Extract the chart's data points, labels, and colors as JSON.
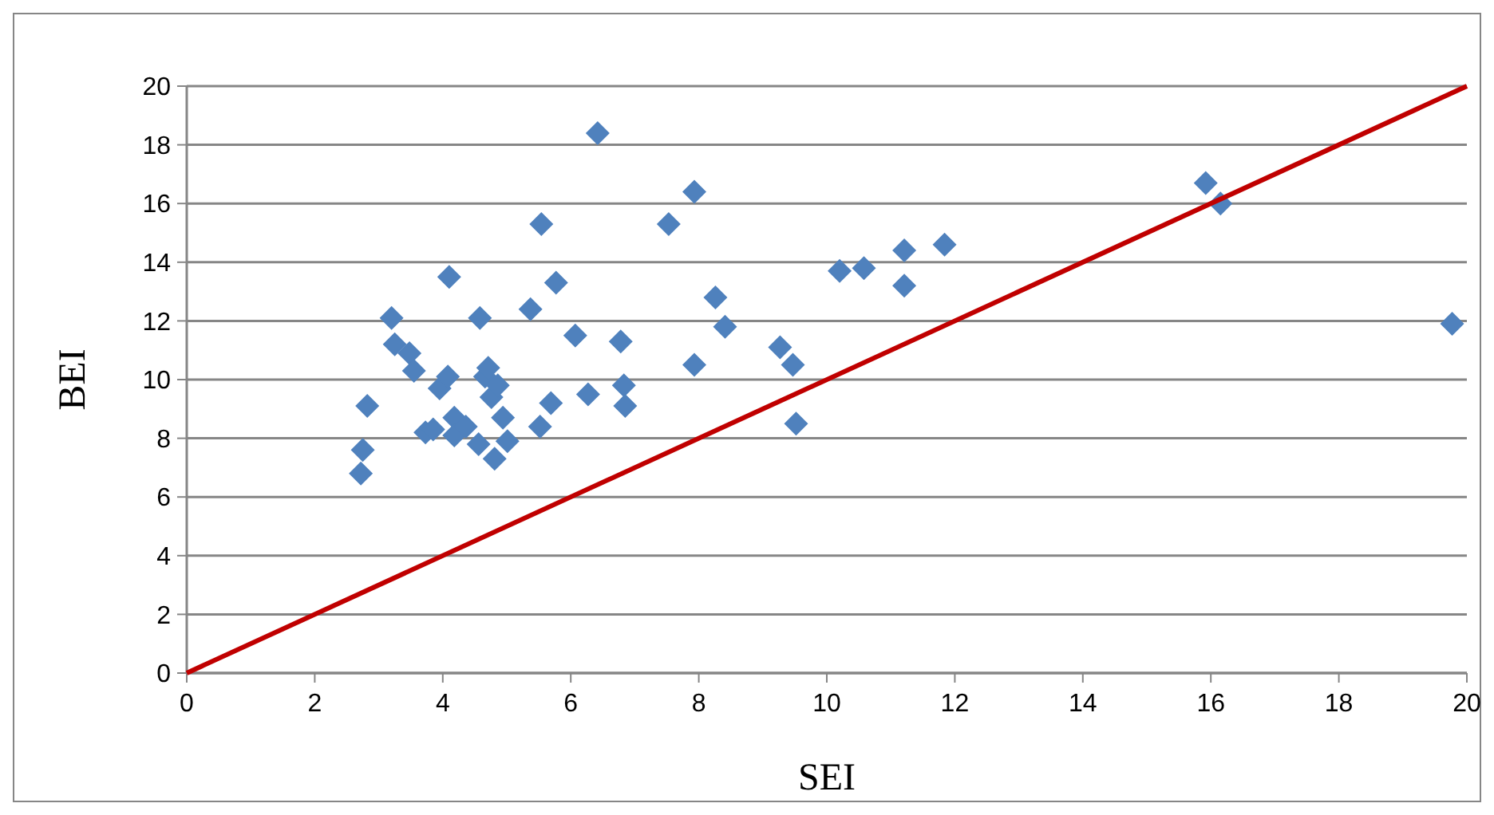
{
  "chart_data": {
    "type": "scatter",
    "xlabel": "SEI",
    "ylabel": "BEI",
    "xlim": [
      0,
      20
    ],
    "ylim": [
      0,
      20
    ],
    "xticks": [
      0,
      2,
      4,
      6,
      8,
      10,
      12,
      14,
      16,
      18,
      20
    ],
    "yticks": [
      0,
      2,
      4,
      6,
      8,
      10,
      12,
      14,
      16,
      18,
      20
    ],
    "grid": "y",
    "series": [
      {
        "color": "#4f81bd",
        "marker": "diamond",
        "x": [
          2.72,
          2.75,
          2.82,
          3.2,
          3.25,
          3.48,
          3.55,
          3.73,
          3.85,
          3.95,
          4.1,
          4.08,
          4.18,
          4.18,
          4.36,
          4.58,
          4.56,
          4.66,
          4.71,
          4.76,
          4.81,
          4.86,
          4.94,
          5.01,
          5.37,
          5.54,
          5.52,
          5.69,
          5.77,
          6.07,
          6.27,
          6.42,
          6.78,
          6.83,
          6.85,
          7.53,
          7.93,
          7.93,
          8.26,
          8.41,
          9.27,
          9.47,
          9.52,
          10.2,
          10.58,
          11.21,
          11.21,
          11.84,
          15.92,
          16.15,
          19.77
        ],
        "values": [
          6.8,
          7.6,
          9.1,
          12.1,
          11.2,
          10.9,
          10.3,
          8.2,
          8.3,
          9.7,
          13.5,
          10.1,
          8.7,
          8.1,
          8.4,
          12.1,
          7.8,
          10.1,
          10.4,
          9.4,
          7.3,
          9.8,
          8.7,
          7.9,
          12.4,
          15.3,
          8.4,
          9.2,
          13.3,
          11.5,
          9.5,
          18.4,
          11.3,
          9.8,
          9.1,
          15.3,
          16.4,
          10.5,
          12.8,
          11.8,
          11.1,
          10.5,
          8.5,
          13.7,
          13.8,
          14.4,
          13.2,
          14.6,
          16.7,
          16.0,
          11.9
        ]
      },
      {
        "type": "line",
        "color": "#c00000",
        "marker": "none",
        "line_style": "solid",
        "x": [
          0,
          20
        ],
        "values": [
          0,
          20
        ]
      }
    ]
  }
}
